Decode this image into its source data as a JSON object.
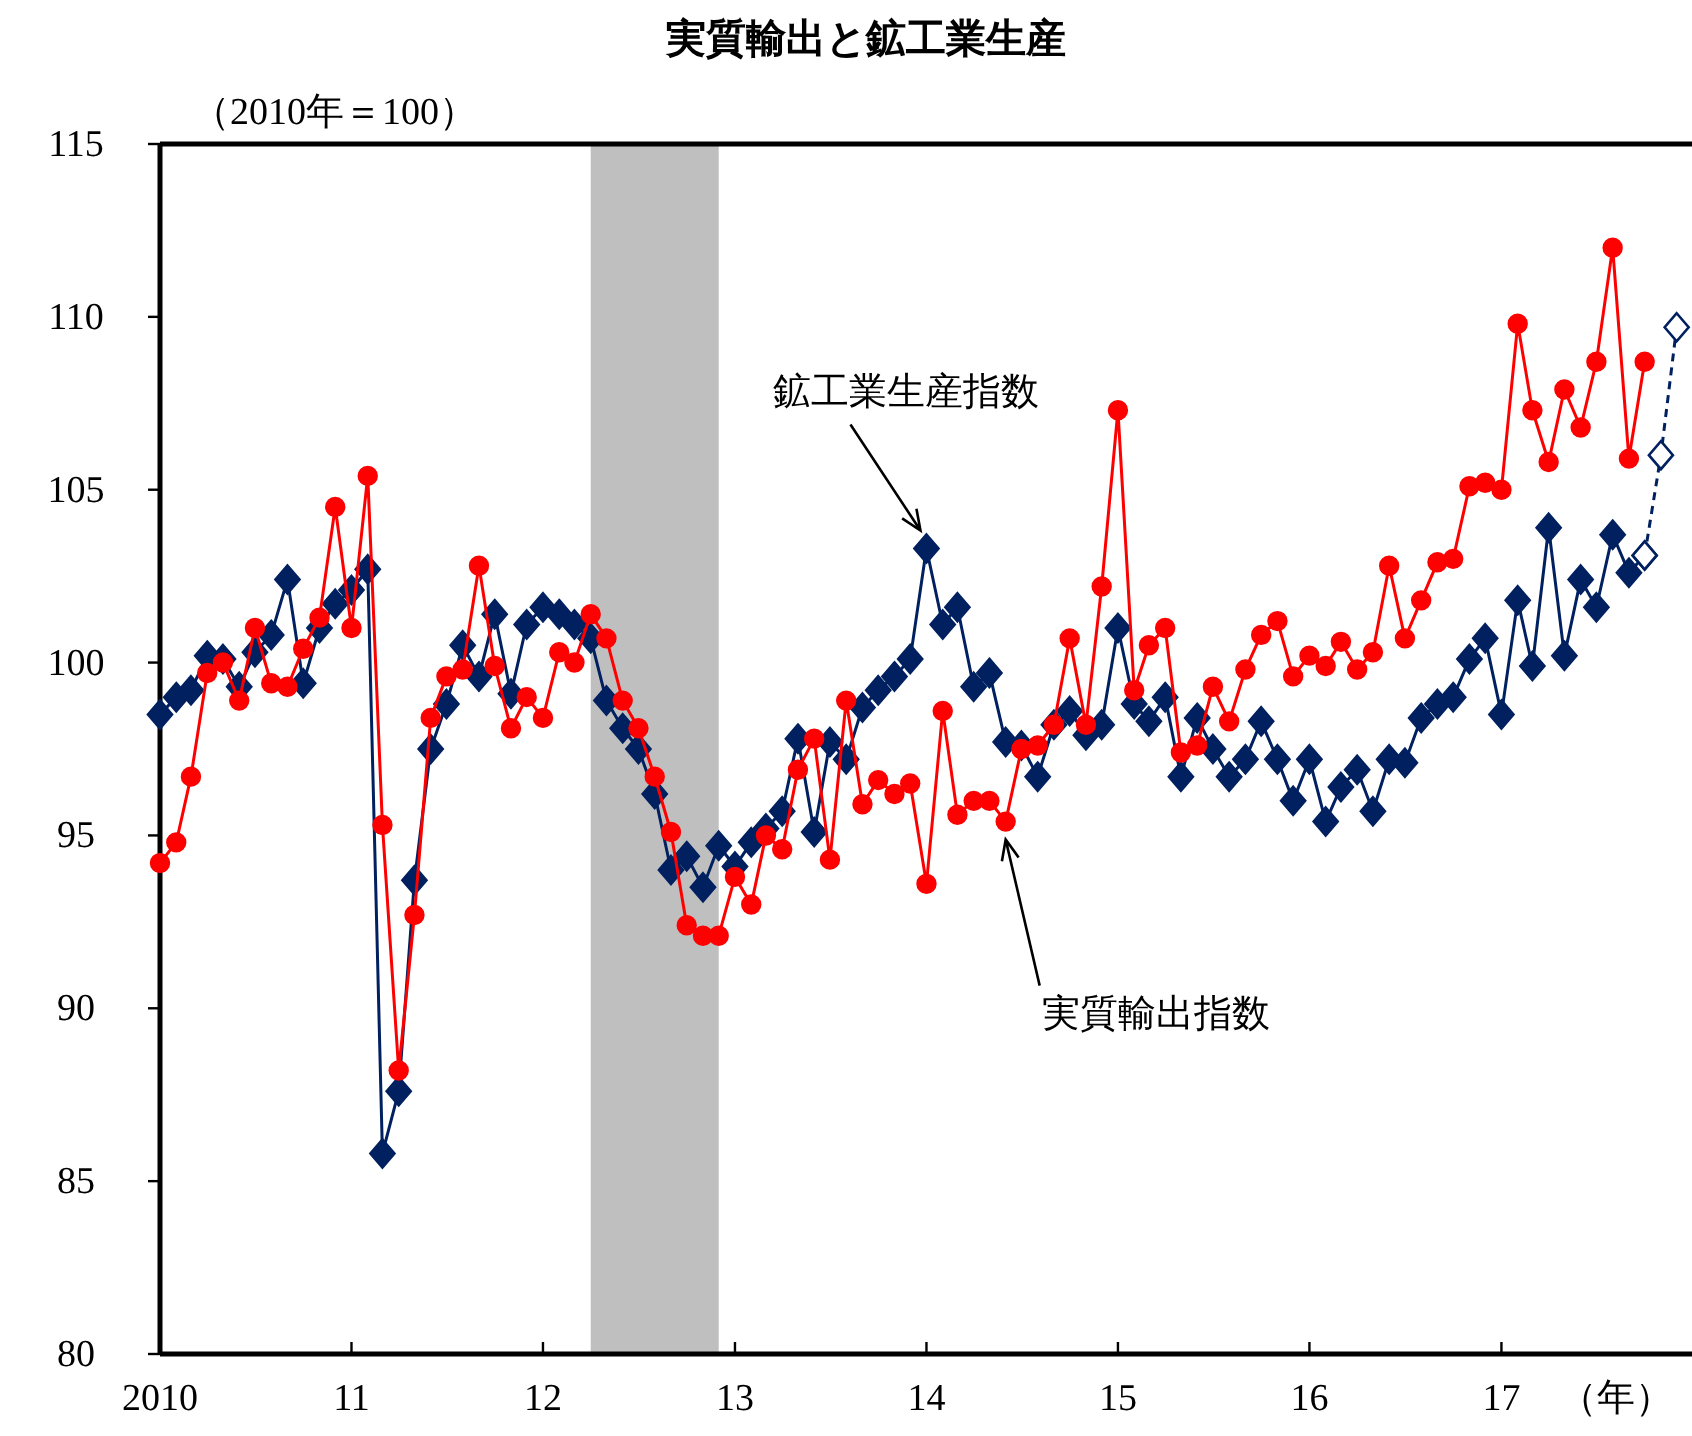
{
  "chart_data": {
    "type": "line",
    "title": "実質輸出と鉱工業生産",
    "ylabel": "（2010年＝100）",
    "xlabel": "（年）",
    "xlim": [
      "2010-01",
      "2017-12-15"
    ],
    "xticks": [
      {
        "value": "2010-01",
        "label": "2010"
      },
      {
        "value": "2011-01",
        "label": "11"
      },
      {
        "value": "2012-01",
        "label": "12"
      },
      {
        "value": "2013-01",
        "label": "13"
      },
      {
        "value": "2014-01",
        "label": "14"
      },
      {
        "value": "2015-01",
        "label": "15"
      },
      {
        "value": "2016-01",
        "label": "16"
      },
      {
        "value": "2017-01",
        "label": "17"
      }
    ],
    "x": [
      "2010-01",
      "2010-02",
      "2010-03",
      "2010-04",
      "2010-05",
      "2010-06",
      "2010-07",
      "2010-08",
      "2010-09",
      "2010-10",
      "2010-11",
      "2010-12",
      "2011-01",
      "2011-02",
      "2011-03",
      "2011-04",
      "2011-05",
      "2011-06",
      "2011-07",
      "2011-08",
      "2011-09",
      "2011-10",
      "2011-11",
      "2011-12",
      "2012-01",
      "2012-02",
      "2012-03",
      "2012-04",
      "2012-05",
      "2012-06",
      "2012-07",
      "2012-08",
      "2012-09",
      "2012-10",
      "2012-11",
      "2012-12",
      "2013-01",
      "2013-02",
      "2013-03",
      "2013-04",
      "2013-05",
      "2013-06",
      "2013-07",
      "2013-08",
      "2013-09",
      "2013-10",
      "2013-11",
      "2013-12",
      "2014-01",
      "2014-02",
      "2014-03",
      "2014-04",
      "2014-05",
      "2014-06",
      "2014-07",
      "2014-08",
      "2014-09",
      "2014-10",
      "2014-11",
      "2014-12",
      "2015-01",
      "2015-02",
      "2015-03",
      "2015-04",
      "2015-05",
      "2015-06",
      "2015-07",
      "2015-08",
      "2015-09",
      "2015-10",
      "2015-11",
      "2015-12",
      "2016-01",
      "2016-02",
      "2016-03",
      "2016-04",
      "2016-05",
      "2016-06",
      "2016-07",
      "2016-08",
      "2016-09",
      "2016-10",
      "2016-11",
      "2016-12",
      "2017-01",
      "2017-02",
      "2017-03",
      "2017-04",
      "2017-05",
      "2017-06",
      "2017-07",
      "2017-08",
      "2017-09",
      "2017-10"
    ],
    "ylim": [
      80,
      115
    ],
    "yticks": [
      80,
      85,
      90,
      95,
      100,
      105,
      110,
      115
    ],
    "grid": false,
    "legend": false,
    "bands": [
      {
        "axis": "x",
        "from": "2012-04",
        "to": "2012-12",
        "color": "#bfbfbf"
      }
    ],
    "series": [
      {
        "name": "鉱工業生産指数",
        "color": "#002060",
        "marker": "diamond",
        "values": [
          98.5,
          99.0,
          99.2,
          100.2,
          100.1,
          99.3,
          100.3,
          100.8,
          102.4,
          99.4,
          101.0,
          101.7,
          102.1,
          102.7,
          85.8,
          87.6,
          93.7,
          97.5,
          98.8,
          100.5,
          99.6,
          101.4,
          99.1,
          101.1,
          101.6,
          101.4,
          101.1,
          100.7,
          98.9,
          98.1,
          97.5,
          96.2,
          94.0,
          94.4,
          93.5,
          94.7,
          94.1,
          94.8,
          95.2,
          95.7,
          97.8,
          95.1,
          97.7,
          97.2,
          98.7,
          99.2,
          99.6,
          100.1,
          103.3,
          101.1,
          101.6,
          99.3,
          99.7,
          97.7,
          97.6,
          96.7,
          98.2,
          98.6,
          97.9,
          98.2,
          101.0,
          98.8,
          98.3,
          99.0,
          96.7,
          98.4,
          97.5,
          96.7,
          97.2,
          98.3,
          97.2,
          96.0,
          97.2,
          95.4,
          96.4,
          96.9,
          95.7,
          97.2,
          97.1,
          98.4,
          98.8,
          99.0,
          100.1,
          100.7,
          98.5,
          101.8,
          99.9,
          103.9,
          100.2,
          102.4,
          101.6,
          103.7,
          102.6,
          103.1
        ]
      },
      {
        "name": "実質輸出指数",
        "color": "#ff0000",
        "marker": "circle",
        "values": [
          94.2,
          94.8,
          96.7,
          99.7,
          100.0,
          98.9,
          101.0,
          99.4,
          99.3,
          100.4,
          101.3,
          104.5,
          101.0,
          105.4,
          95.3,
          88.2,
          92.7,
          98.4,
          99.6,
          99.8,
          102.8,
          99.9,
          98.1,
          99.0,
          98.4,
          100.3,
          100.0,
          101.4,
          100.7,
          98.9,
          98.1,
          96.7,
          95.1,
          92.4,
          92.1,
          92.1,
          93.8,
          93.0,
          95.0,
          94.6,
          96.9,
          97.8,
          94.3,
          98.9,
          95.9,
          96.6,
          96.2,
          96.5,
          93.6,
          98.6,
          95.6,
          96.0,
          96.0,
          95.4,
          97.5,
          97.6,
          98.2,
          100.7,
          98.2,
          102.2,
          107.3,
          99.2,
          100.5,
          101.0,
          97.4,
          97.6,
          99.3,
          98.3,
          99.8,
          100.8,
          101.2,
          99.6,
          100.2,
          99.9,
          100.6,
          99.8,
          100.3,
          102.8,
          100.7,
          101.8,
          102.9,
          103.0,
          105.1,
          105.2,
          105.0,
          109.8,
          107.3,
          105.8,
          107.9,
          106.8,
          108.7,
          112.0,
          105.9,
          108.7
        ]
      },
      {
        "color": "#002060",
        "marker": "diamond",
        "line_style": "dashed",
        "x": [
          "2017-10",
          "2017-11",
          "2017-12"
        ],
        "values": [
          103.1,
          106.0,
          109.7
        ]
      }
    ]
  }
}
